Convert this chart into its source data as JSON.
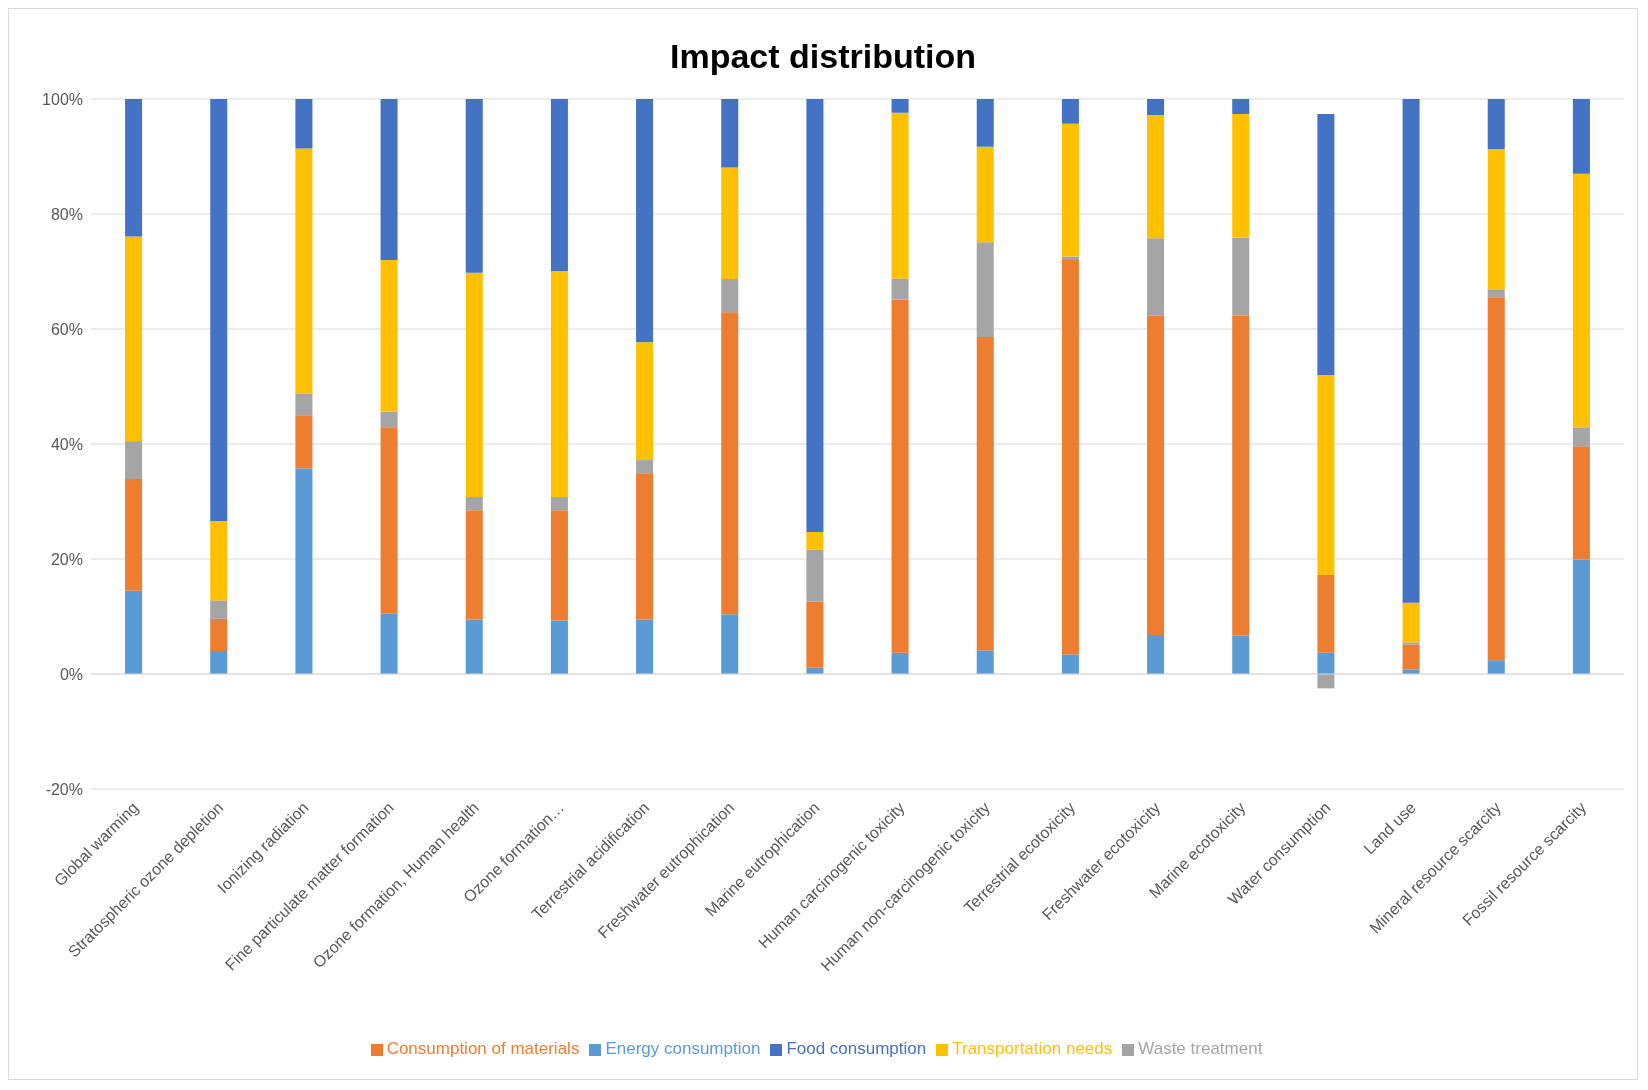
{
  "chart_data": {
    "type": "bar",
    "title": "Impact distribution",
    "stacked": true,
    "grid": "y",
    "legend": "bottom",
    "categories": [
      "Global warming",
      "Stratospheric ozone depletion",
      "Ionizing radiation",
      "Fine particulate matter formation",
      "Ozone formation, Human health",
      "Ozone formation…",
      "Terrestrial acidification",
      "Freshwater eutrophication",
      "Marine eutrophication",
      "Human carcinogenic toxicity",
      "Human non-carcinogenic toxicity",
      "Terrestrial ecotoxicity",
      "Freshwater ecotoxicity",
      "Marine ecotoxicity",
      "Water consumption",
      "Land use",
      "Mineral resource scarcity",
      "Fossil resource scarcity"
    ],
    "series": [
      {
        "name": "Energy consumption",
        "color": "#5b9bd5",
        "values": [
          14.5,
          4.0,
          35.8,
          10.5,
          9.5,
          9.3,
          9.5,
          10.4,
          1.1,
          3.7,
          4.1,
          3.4,
          6.8,
          6.7,
          3.7,
          0.8,
          2.4,
          19.9
        ]
      },
      {
        "name": "Consumption of materials",
        "color": "#ed7d31",
        "values": [
          19.4,
          5.6,
          9.2,
          32.4,
          19.0,
          19.2,
          25.4,
          52.5,
          11.5,
          61.4,
          54.5,
          68.6,
          55.5,
          55.6,
          13.5,
          4.3,
          63.0,
          19.7
        ]
      },
      {
        "name": "Waste treatment",
        "color": "#a5a5a5",
        "values": [
          6.6,
          3.2,
          3.8,
          2.7,
          2.3,
          2.3,
          2.3,
          5.8,
          9.0,
          3.7,
          16.5,
          0.6,
          13.5,
          13.6,
          -2.5,
          0.4,
          1.5,
          3.3
        ]
      },
      {
        "name": "Transportation needs",
        "color": "#ffc000",
        "values": [
          35.6,
          13.8,
          42.6,
          26.4,
          39.0,
          39.3,
          20.5,
          19.4,
          3.1,
          28.8,
          16.6,
          23.1,
          21.4,
          21.5,
          34.8,
          6.9,
          24.4,
          44.1
        ]
      },
      {
        "name": "Food consumption",
        "color": "#4472c4",
        "values": [
          23.9,
          73.4,
          8.6,
          28.0,
          30.2,
          29.9,
          42.3,
          11.9,
          75.3,
          2.4,
          8.3,
          4.3,
          2.8,
          2.6,
          45.4,
          87.6,
          8.7,
          13.0
        ]
      }
    ],
    "ylim": [
      -20,
      100
    ],
    "yticks": [
      {
        "value": -20,
        "label": "-20%"
      },
      {
        "value": 0,
        "label": "0%"
      },
      {
        "value": 20,
        "label": "20%"
      },
      {
        "value": 40,
        "label": "40%"
      },
      {
        "value": 60,
        "label": "60%"
      },
      {
        "value": 80,
        "label": "80%"
      },
      {
        "value": 100,
        "label": "100%"
      }
    ]
  }
}
